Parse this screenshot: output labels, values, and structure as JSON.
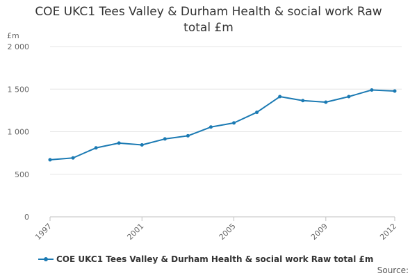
{
  "colors": {
    "series": "#1b7ab3",
    "grid": "#e6e6e6",
    "axis": "#c0c0c0"
  },
  "chart_data": {
    "type": "line",
    "title": "COE UKC1 Tees Valley & Durham Health & social work Raw total £m",
    "ylabel": "£m",
    "xlim": [
      1997,
      2012
    ],
    "ylim": [
      0,
      2000
    ],
    "y_ticks": [
      0,
      500,
      1000,
      1500,
      2000
    ],
    "y_tick_labels": [
      "0",
      "500",
      "1 000",
      "1 500",
      "2 000"
    ],
    "x_ticks": [
      1997,
      2001,
      2005,
      2009,
      2012
    ],
    "x_tick_labels": [
      "1997",
      "2001",
      "2005",
      "2009",
      "2012"
    ],
    "grid": true,
    "legend_position": "bottom",
    "series": [
      {
        "name": "COE UKC1 Tees Valley & Durham Health & social work Raw total £m",
        "x": [
          1997,
          1998,
          1999,
          2000,
          2001,
          2002,
          2003,
          2004,
          2005,
          2006,
          2007,
          2008,
          2009,
          2010,
          2011,
          2012
        ],
        "values": [
          670,
          692,
          810,
          866,
          845,
          915,
          952,
          1055,
          1103,
          1228,
          1412,
          1365,
          1347,
          1412,
          1490,
          1478
        ]
      }
    ]
  },
  "footer": {
    "source_label": "Source:"
  }
}
